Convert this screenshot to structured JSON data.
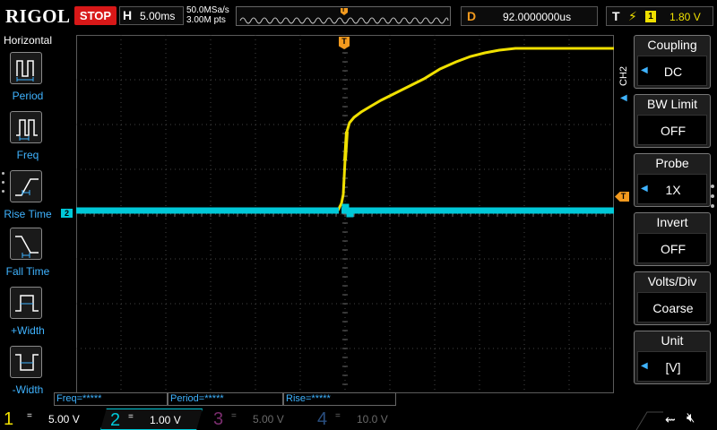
{
  "brand": "RIGOL",
  "run_state": "STOP",
  "timebase": {
    "label": "H",
    "value": "5.00ms"
  },
  "sample": {
    "rate": "50.0MSa/s",
    "points": "3.00M pts"
  },
  "trigger_pos_label": "T",
  "delay": {
    "label": "D",
    "value": "92.0000000us"
  },
  "trigger": {
    "label": "T",
    "edge": "rising-edge",
    "source": "1",
    "level": "1.80 V"
  },
  "left_menu": {
    "title": "Horizontal",
    "items": [
      {
        "label": "Period",
        "icon": "period-icon"
      },
      {
        "label": "Freq",
        "icon": "freq-icon"
      },
      {
        "label": "Rise Time",
        "icon": "rise-time-icon"
      },
      {
        "label": "Fall Time",
        "icon": "fall-time-icon"
      },
      {
        "label": "+Width",
        "icon": "positive-width-icon"
      },
      {
        "label": "-Width",
        "icon": "negative-width-icon"
      }
    ]
  },
  "channel_marker": "2",
  "trig_level_marker": "T",
  "measurements": [
    {
      "text": "Freq=*****"
    },
    {
      "text": "Period=*****"
    },
    {
      "text": "Rise=*****"
    }
  ],
  "right_menu": {
    "channel": "CH2",
    "items": [
      {
        "title": "Coupling",
        "value": "DC",
        "has_arrow": true
      },
      {
        "title": "BW Limit",
        "value": "OFF",
        "has_arrow": false
      },
      {
        "title": "Probe",
        "value": "1X",
        "has_arrow": true
      },
      {
        "title": "Invert",
        "value": "OFF",
        "has_arrow": false
      },
      {
        "title": "Volts/Div",
        "value": "Coarse",
        "has_arrow": false
      },
      {
        "title": "Unit",
        "value": "[V]",
        "has_arrow": true
      }
    ]
  },
  "channels": [
    {
      "num": "1",
      "coupling": "=",
      "scale": "5.00 V",
      "color": "#f0e000"
    },
    {
      "num": "2",
      "coupling": "=",
      "scale": "1.00 V",
      "color": "#00c8d8"
    },
    {
      "num": "3",
      "coupling": "=",
      "scale": "5.00 V",
      "color": "#7a2d6e"
    },
    {
      "num": "4",
      "coupling": "=",
      "scale": "10.0 V",
      "color": "#2a4f80"
    }
  ],
  "colors": {
    "ch1": "#f0e000",
    "ch2": "#00c8d8",
    "trigger": "#f39a1e",
    "menu_text": "#3fb3ff",
    "stop": "#d81818"
  },
  "status_icons": [
    "usb-icon",
    "speaker-muted-icon"
  ]
}
